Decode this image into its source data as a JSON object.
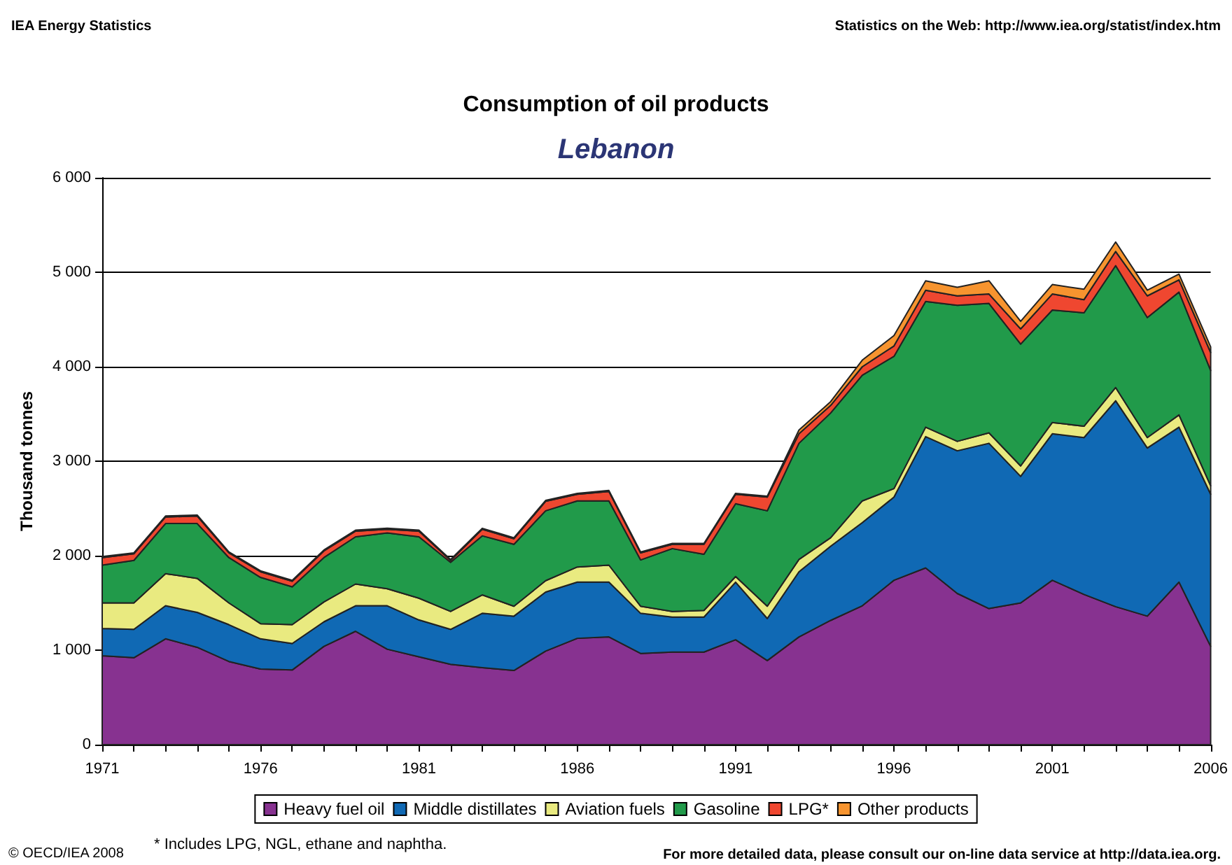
{
  "chart_data": {
    "type": "area",
    "stacked": true,
    "title": "Consumption of oil products",
    "subtitle": "Lebanon",
    "ylabel": "Thousand tonnes",
    "annotations": [
      "IEA Energy Statistics",
      "Statistics on the Web: http://www.iea.org/statist/index.htm",
      "* Includes LPG, NGL, ethane and naphtha.",
      "© OECD/IEA 2008",
      "For more detailed data, please consult our on-line data service at http://data.iea.org."
    ],
    "x": [
      1971,
      1972,
      1973,
      1974,
      1975,
      1976,
      1977,
      1978,
      1979,
      1980,
      1981,
      1982,
      1983,
      1984,
      1985,
      1986,
      1987,
      1988,
      1989,
      1990,
      1991,
      1992,
      1993,
      1994,
      1995,
      1996,
      1997,
      1998,
      1999,
      2000,
      2001,
      2002,
      2003,
      2004,
      2005,
      2006
    ],
    "series": [
      {
        "name": "Heavy fuel oil",
        "color": "#873290",
        "values": [
          940,
          920,
          1120,
          1030,
          880,
          800,
          790,
          1040,
          1200,
          1010,
          930,
          850,
          815,
          785,
          990,
          1125,
          1140,
          965,
          980,
          980,
          1110,
          890,
          1140,
          1315,
          1470,
          1740,
          1870,
          1600,
          1440,
          1500,
          1740,
          1590,
          1460,
          1360,
          1720,
          1040
        ]
      },
      {
        "name": "Middle distillates",
        "color": "#1069b4",
        "values": [
          290,
          300,
          350,
          370,
          390,
          320,
          280,
          260,
          270,
          460,
          390,
          370,
          575,
          575,
          625,
          595,
          580,
          425,
          370,
          370,
          610,
          445,
          690,
          785,
          880,
          880,
          1390,
          1510,
          1750,
          1340,
          1550,
          1660,
          2180,
          1780,
          1640,
          1610
        ]
      },
      {
        "name": "Aviation fuels",
        "color": "#e9ea80",
        "values": [
          270,
          280,
          340,
          360,
          230,
          160,
          200,
          210,
          230,
          180,
          230,
          190,
          195,
          105,
          120,
          160,
          180,
          75,
          60,
          70,
          60,
          130,
          130,
          90,
          230,
          90,
          100,
          100,
          110,
          110,
          120,
          120,
          140,
          110,
          130,
          90
        ]
      },
      {
        "name": "Gasoline",
        "color": "#219a4a",
        "values": [
          400,
          450,
          530,
          580,
          480,
          490,
          400,
          470,
          500,
          590,
          650,
          520,
          625,
          655,
          740,
          700,
          680,
          490,
          665,
          595,
          770,
          1010,
          1230,
          1320,
          1330,
          1400,
          1330,
          1440,
          1370,
          1290,
          1190,
          1200,
          1290,
          1270,
          1300,
          1220
        ]
      },
      {
        "name": "LPG*",
        "color": "#ef4730",
        "values": [
          80,
          70,
          70,
          80,
          50,
          60,
          60,
          70,
          60,
          40,
          60,
          20,
          70,
          60,
          100,
          70,
          100,
          75,
          45,
          105,
          100,
          145,
          100,
          80,
          90,
          110,
          120,
          100,
          100,
          160,
          170,
          140,
          150,
          230,
          130,
          190
        ]
      },
      {
        "name": "Other products",
        "color": "#f7942f",
        "values": [
          10,
          10,
          10,
          10,
          10,
          10,
          10,
          10,
          10,
          10,
          10,
          10,
          10,
          10,
          10,
          10,
          10,
          10,
          10,
          10,
          10,
          10,
          40,
          40,
          70,
          110,
          100,
          90,
          140,
          80,
          100,
          110,
          100,
          60,
          60,
          60
        ]
      }
    ],
    "xlim": [
      1971,
      2006
    ],
    "xticks": [
      1971,
      {
        "value": 1972,
        "label": null
      },
      {
        "value": 1973,
        "label": null
      },
      {
        "value": 1974,
        "label": null
      },
      {
        "value": 1975,
        "label": null
      },
      1976,
      {
        "value": 1977,
        "label": null
      },
      {
        "value": 1978,
        "label": null
      },
      {
        "value": 1979,
        "label": null
      },
      {
        "value": 1980,
        "label": null
      },
      1981,
      {
        "value": 1982,
        "label": null
      },
      {
        "value": 1983,
        "label": null
      },
      {
        "value": 1984,
        "label": null
      },
      {
        "value": 1985,
        "label": null
      },
      1986,
      {
        "value": 1987,
        "label": null
      },
      {
        "value": 1988,
        "label": null
      },
      {
        "value": 1989,
        "label": null
      },
      {
        "value": 1990,
        "label": null
      },
      1991,
      {
        "value": 1992,
        "label": null
      },
      {
        "value": 1993,
        "label": null
      },
      {
        "value": 1994,
        "label": null
      },
      {
        "value": 1995,
        "label": null
      },
      1996,
      {
        "value": 1997,
        "label": null
      },
      {
        "value": 1998,
        "label": null
      },
      {
        "value": 1999,
        "label": null
      },
      {
        "value": 2000,
        "label": null
      },
      2001,
      {
        "value": 2002,
        "label": null
      },
      {
        "value": 2003,
        "label": null
      },
      {
        "value": 2004,
        "label": null
      },
      {
        "value": 2005,
        "label": null
      },
      2006
    ],
    "ylim": [
      0,
      6000
    ],
    "yticks": [
      0,
      {
        "value": 1000,
        "label": "1 000"
      },
      {
        "value": 2000,
        "label": "2 000"
      },
      {
        "value": 3000,
        "label": "3 000"
      },
      {
        "value": 4000,
        "label": "4 000"
      },
      {
        "value": 5000,
        "label": "5 000"
      },
      {
        "value": 6000,
        "label": "6 000"
      }
    ],
    "grid": "y",
    "legend": "bottom",
    "line_style": "solid"
  }
}
